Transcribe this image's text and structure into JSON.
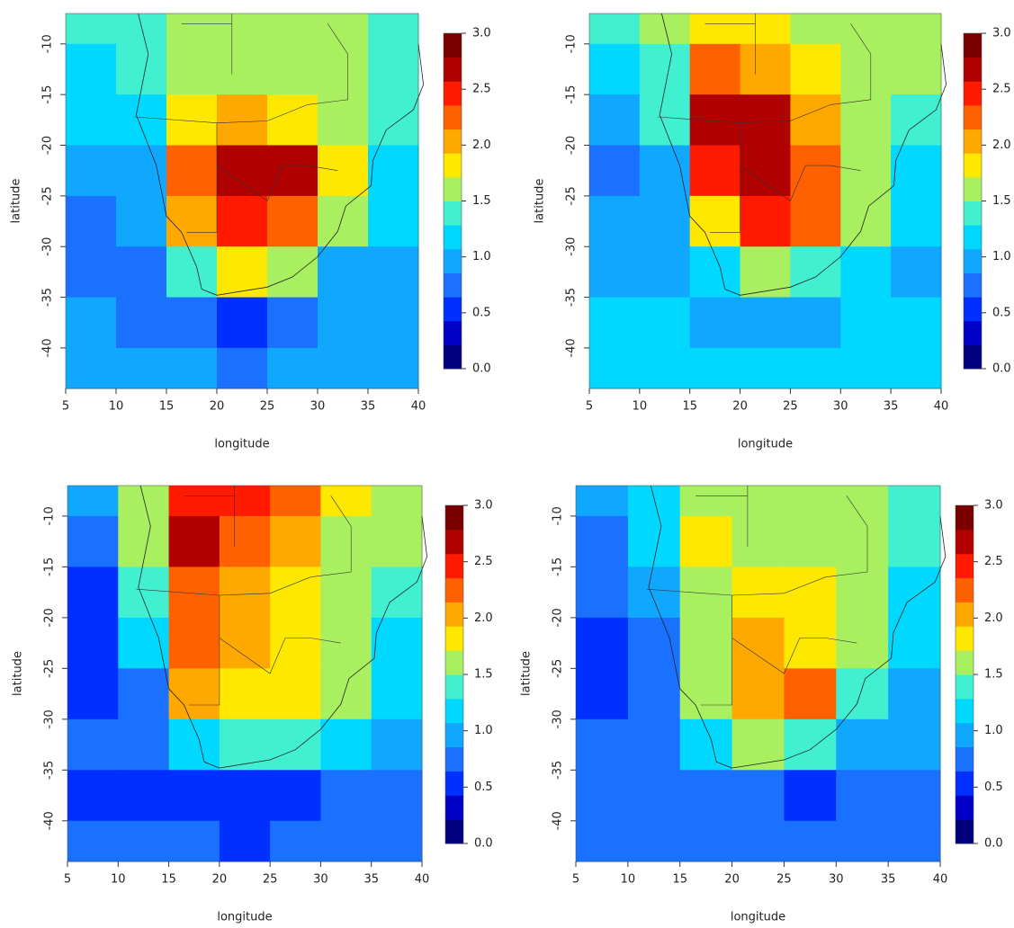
{
  "chart_data": [
    {
      "type": "heatmap",
      "xlabel": "longitude",
      "ylabel": "latitude",
      "x_edges": [
        5,
        10,
        15,
        20,
        25,
        30,
        35,
        40
      ],
      "y_edges": [
        -7,
        -10,
        -15,
        -20,
        -25,
        -30,
        -35,
        -40,
        -44
      ],
      "values": [
        [
          1.3,
          1.3,
          1.5,
          1.5,
          1.5,
          1.5,
          1.4
        ],
        [
          1.2,
          1.3,
          1.6,
          1.6,
          1.6,
          1.6,
          1.4
        ],
        [
          1.1,
          1.2,
          1.8,
          2.0,
          1.9,
          1.7,
          1.3
        ],
        [
          0.9,
          1.0,
          2.2,
          2.7,
          2.6,
          1.9,
          1.2
        ],
        [
          0.8,
          0.9,
          2.0,
          2.5,
          2.3,
          1.6,
          1.1
        ],
        [
          0.8,
          0.7,
          1.3,
          1.8,
          1.5,
          1.0,
          1.0
        ],
        [
          0.9,
          0.8,
          0.8,
          0.6,
          0.7,
          0.9,
          0.9
        ],
        [
          0.9,
          0.9,
          0.9,
          0.8,
          0.9,
          0.9,
          0.9
        ]
      ],
      "xlim": [
        5,
        40
      ],
      "ylim": [
        -44,
        -7
      ],
      "xticks": [
        5,
        10,
        15,
        20,
        25,
        30,
        35,
        40
      ],
      "yticks": [
        -10,
        -15,
        -20,
        -25,
        -30,
        -35,
        -40
      ],
      "colorbar_lim": [
        0,
        3
      ],
      "colorbar_ticks": [
        {
          "value": 0,
          "label": "0.0"
        },
        0.5,
        {
          "value": 1,
          "label": "1.0"
        },
        1.5,
        {
          "value": 2,
          "label": "2.0"
        },
        2.5,
        {
          "value": 3,
          "label": "3.0"
        }
      ],
      "colors": [
        "#00007f",
        "#0000c8",
        "#0030ff",
        "#1a70ff",
        "#10a8ff",
        "#00d8ff",
        "#40f0d0",
        "#a8f060",
        "#ffe800",
        "#ffa800",
        "#ff6000",
        "#ff1a00",
        "#b00000",
        "#7a0000"
      ]
    },
    {
      "type": "heatmap",
      "xlabel": "longitude",
      "ylabel": "latitude",
      "x_edges": [
        5,
        10,
        15,
        20,
        25,
        30,
        35,
        40
      ],
      "y_edges": [
        -7,
        -10,
        -15,
        -20,
        -25,
        -30,
        -35,
        -40,
        -44
      ],
      "values": [
        [
          1.4,
          1.6,
          1.9,
          1.8,
          1.7,
          1.7,
          1.6
        ],
        [
          1.1,
          1.3,
          2.3,
          2.1,
          1.8,
          1.6,
          1.5
        ],
        [
          0.9,
          1.4,
          2.7,
          2.7,
          2.0,
          1.6,
          1.3
        ],
        [
          0.7,
          1.0,
          2.5,
          2.7,
          2.2,
          1.6,
          1.2
        ],
        [
          0.9,
          0.9,
          1.8,
          2.4,
          2.3,
          1.6,
          1.1
        ],
        [
          1.0,
          0.9,
          1.2,
          1.7,
          1.4,
          1.1,
          1.0
        ],
        [
          1.1,
          1.1,
          1.0,
          0.9,
          1.0,
          1.1,
          1.1
        ],
        [
          1.2,
          1.2,
          1.1,
          1.1,
          1.1,
          1.1,
          1.1
        ]
      ],
      "xlim": [
        5,
        40
      ],
      "ylim": [
        -44,
        -7
      ],
      "xticks": [
        5,
        10,
        15,
        20,
        25,
        30,
        35,
        40
      ],
      "yticks": [
        -10,
        -15,
        -20,
        -25,
        -30,
        -35,
        -40
      ],
      "colorbar_lim": [
        0,
        3
      ],
      "colorbar_ticks": [
        {
          "value": 0,
          "label": "0.0"
        },
        0.5,
        {
          "value": 1,
          "label": "1.0"
        },
        1.5,
        {
          "value": 2,
          "label": "2.0"
        },
        2.5,
        {
          "value": 3,
          "label": "3.0"
        }
      ],
      "colors": [
        "#00007f",
        "#0000c8",
        "#0030ff",
        "#1a70ff",
        "#10a8ff",
        "#00d8ff",
        "#40f0d0",
        "#a8f060",
        "#ffe800",
        "#ffa800",
        "#ff6000",
        "#ff1a00",
        "#b00000",
        "#7a0000"
      ]
    },
    {
      "type": "heatmap",
      "xlabel": "longitude",
      "ylabel": "latitude",
      "x_edges": [
        5,
        10,
        15,
        20,
        25,
        30,
        35,
        40
      ],
      "y_edges": [
        -7,
        -10,
        -15,
        -20,
        -25,
        -30,
        -35,
        -40,
        -44
      ],
      "values": [
        [
          1.0,
          1.5,
          2.5,
          2.4,
          2.3,
          1.9,
          1.6
        ],
        [
          0.7,
          1.6,
          2.6,
          2.2,
          2.0,
          1.7,
          1.5
        ],
        [
          0.5,
          1.4,
          2.3,
          2.1,
          1.8,
          1.6,
          1.3
        ],
        [
          0.5,
          1.1,
          2.3,
          2.0,
          1.9,
          1.6,
          1.2
        ],
        [
          0.6,
          0.8,
          2.0,
          1.9,
          1.9,
          1.5,
          1.1
        ],
        [
          0.8,
          0.8,
          1.2,
          1.4,
          1.3,
          1.1,
          1.0
        ],
        [
          0.6,
          0.6,
          0.6,
          0.6,
          0.6,
          0.7,
          0.7
        ],
        [
          0.7,
          0.7,
          0.7,
          0.6,
          0.7,
          0.7,
          0.7
        ]
      ],
      "xlim": [
        5,
        40
      ],
      "ylim": [
        -44,
        -7
      ],
      "xticks": [
        5,
        10,
        15,
        20,
        25,
        30,
        35,
        40
      ],
      "yticks": [
        -10,
        -15,
        -20,
        -25,
        -30,
        -35,
        -40
      ],
      "colorbar_lim": [
        0,
        3
      ],
      "colorbar_ticks": [
        {
          "value": 0,
          "label": "0.0"
        },
        0.5,
        {
          "value": 1,
          "label": "1.0"
        },
        1.5,
        {
          "value": 2,
          "label": "2.0"
        },
        2.5,
        {
          "value": 3,
          "label": "3.0"
        }
      ],
      "colors": [
        "#00007f",
        "#0000c8",
        "#0030ff",
        "#1a70ff",
        "#10a8ff",
        "#00d8ff",
        "#40f0d0",
        "#a8f060",
        "#ffe800",
        "#ffa800",
        "#ff6000",
        "#ff1a00",
        "#b00000",
        "#7a0000"
      ]
    },
    {
      "type": "heatmap",
      "xlabel": "longitude",
      "ylabel": "latitude",
      "x_edges": [
        5,
        10,
        15,
        20,
        25,
        30,
        35,
        40
      ],
      "y_edges": [
        -7,
        -10,
        -15,
        -20,
        -25,
        -30,
        -35,
        -40,
        -44
      ],
      "values": [
        [
          0.9,
          1.2,
          1.7,
          1.6,
          1.6,
          1.6,
          1.4
        ],
        [
          0.8,
          1.1,
          1.9,
          1.7,
          1.6,
          1.5,
          1.3
        ],
        [
          0.8,
          1.0,
          1.7,
          1.8,
          1.8,
          1.5,
          1.2
        ],
        [
          0.6,
          0.8,
          1.6,
          2.0,
          1.8,
          1.5,
          1.1
        ],
        [
          0.6,
          0.7,
          1.6,
          2.0,
          2.2,
          1.4,
          1.0
        ],
        [
          0.7,
          0.7,
          1.1,
          1.5,
          1.4,
          1.0,
          0.9
        ],
        [
          0.8,
          0.8,
          0.8,
          0.7,
          0.6,
          0.7,
          0.8
        ],
        [
          0.8,
          0.8,
          0.8,
          0.7,
          0.8,
          0.8,
          0.8
        ]
      ],
      "xlim": [
        5,
        40
      ],
      "ylim": [
        -44,
        -7
      ],
      "xticks": [
        5,
        10,
        15,
        20,
        25,
        30,
        35,
        40
      ],
      "yticks": [
        -10,
        -15,
        -20,
        -25,
        -30,
        -35,
        -40
      ],
      "colorbar_lim": [
        0,
        3
      ],
      "colorbar_ticks": [
        {
          "value": 0,
          "label": "0.0"
        },
        0.5,
        {
          "value": 1,
          "label": "1.0"
        },
        1.5,
        {
          "value": 2,
          "label": "2.0"
        },
        2.5,
        {
          "value": 3,
          "label": "3.0"
        }
      ],
      "colors": [
        "#00007f",
        "#0000c8",
        "#0030ff",
        "#1a70ff",
        "#10a8ff",
        "#00d8ff",
        "#40f0d0",
        "#a8f060",
        "#ffe800",
        "#ffa800",
        "#ff6000",
        "#ff1a00",
        "#b00000",
        "#7a0000"
      ]
    }
  ]
}
